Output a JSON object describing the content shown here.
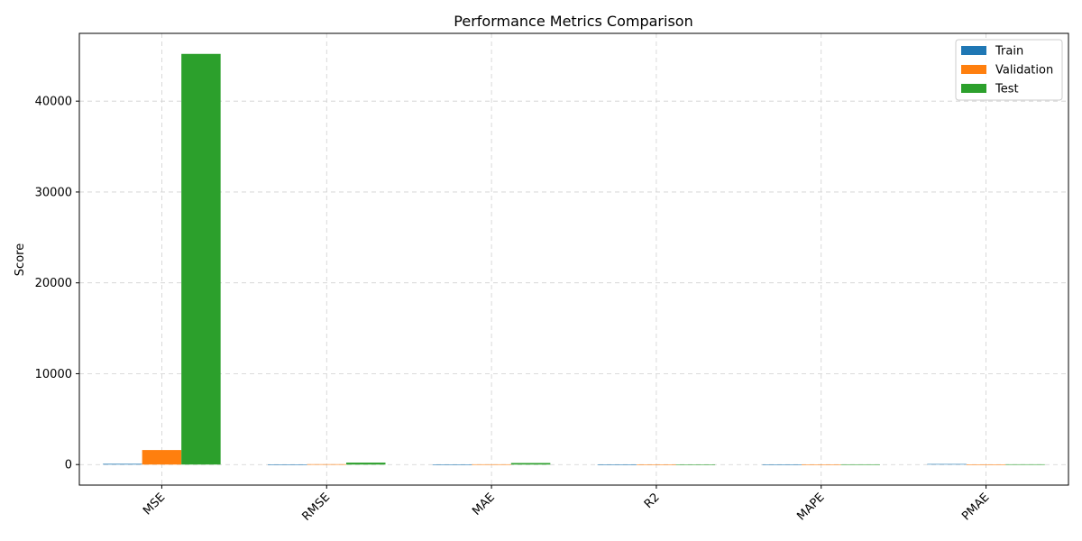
{
  "chart_data": {
    "type": "bar",
    "title": "Performance Metrics Comparison",
    "xlabel": "",
    "ylabel": "Score",
    "categories": [
      "MSE",
      "RMSE",
      "MAE",
      "R2",
      "MAPE",
      "PMAE"
    ],
    "series": [
      {
        "name": "Train",
        "color": "#1f77b4",
        "values": [
          80,
          9,
          6,
          0.98,
          5,
          60
        ]
      },
      {
        "name": "Validation",
        "color": "#ff7f0e",
        "values": [
          1600,
          40,
          30,
          0.9,
          10,
          20
        ]
      },
      {
        "name": "Test",
        "color": "#2ca02c",
        "values": [
          45200,
          212,
          170,
          0.5,
          25,
          30
        ]
      }
    ],
    "ylim": [
      -2260,
      47460
    ],
    "yticks": [
      0,
      10000,
      20000,
      30000,
      40000
    ],
    "grid": true,
    "legend_position": "top-right"
  }
}
